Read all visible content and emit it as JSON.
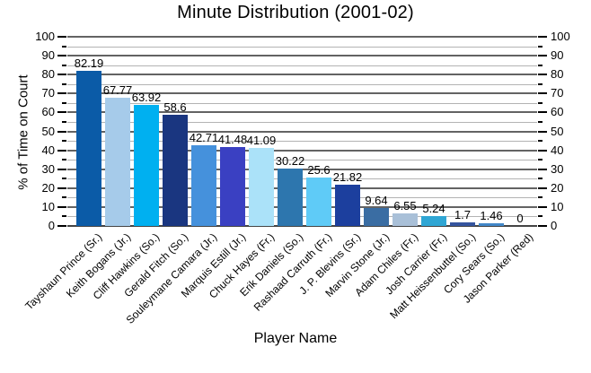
{
  "chart_data": {
    "type": "bar",
    "title": "Minute Distribution (2001-02)",
    "xlabel": "Player Name",
    "ylabel": "% of Time on Court",
    "ylim": [
      0,
      100
    ],
    "y_major_tick_step": 10,
    "y_minor_tick_step": 5,
    "y_tick_labels": [
      "0",
      "10",
      "20",
      "30",
      "40",
      "50",
      "60",
      "70",
      "80",
      "90",
      "100"
    ],
    "y_axis_mirrored_right": true,
    "grid": "horizontal, dark lines at 10s, light lines at 5s",
    "legend": "none",
    "value_labels_shown": true,
    "categories": [
      "Tayshaun Prince (Sr.)",
      "Keith Bogans (Jr.)",
      "Cliff Hawkins (So.)",
      "Gerald Fitch (So.)",
      "Souleymane Camara (Jr.)",
      "Marquis Estill (Jr.)",
      "Chuck Hayes (Fr.)",
      "Erik Daniels (So.)",
      "Rashaad Carruth (Fr.)",
      "J. P. Blevins (Sr.)",
      "Marvin Stone (Jr.)",
      "Adam Chiles (Fr.)",
      "Josh Carrier (Fr.)",
      "Matt Heissenbuttel (So.)",
      "Cory Sears (So.)",
      "Jason Parker (Red)"
    ],
    "values": [
      82.19,
      67.77,
      63.92,
      58.6,
      42.71,
      41.48,
      41.09,
      30.22,
      25.6,
      21.82,
      9.64,
      6.55,
      5.24,
      1.7,
      1.46,
      0
    ],
    "bar_colors": [
      "#0b5ba7",
      "#a6cbea",
      "#00b0f0",
      "#1a3680",
      "#4591dc",
      "#3a40c2",
      "#abe2f9",
      "#2d76ae",
      "#5fcbf7",
      "#1c3f9e",
      "#3a6da3",
      "#a9c0d8",
      "#2fa6d4",
      "#34549e",
      "#4287c8",
      "#4591dc"
    ]
  },
  "colors": {
    "background": "#ffffff",
    "text": "#000000",
    "grid_major": "#636363",
    "grid_minor": "#b3b3b3",
    "axis_line": "#444444",
    "tick": "#000000"
  }
}
